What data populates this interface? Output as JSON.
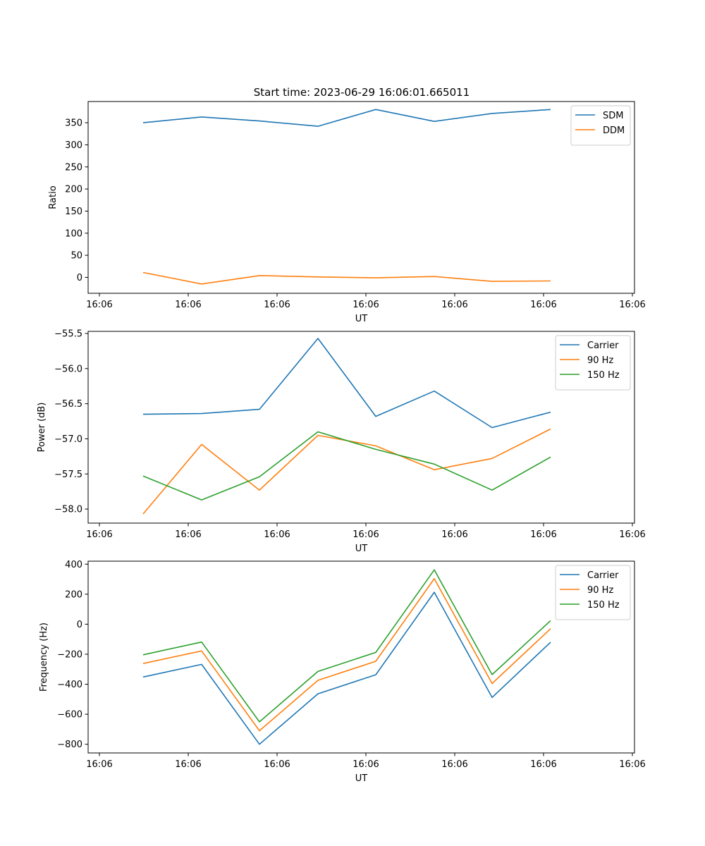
{
  "figure": {
    "title": "Start time: 2023-06-29 16:06:01.665011"
  },
  "chart_data": [
    {
      "type": "line",
      "xlabel": "UT",
      "ylabel": "Ratio",
      "x_tick_labels": [
        "16:06",
        "16:06",
        "16:06",
        "16:06",
        "16:06",
        "16:06",
        "16:06"
      ],
      "y_ticks": [
        0,
        50,
        100,
        150,
        200,
        250,
        300,
        350
      ],
      "ylim": [
        -36,
        398
      ],
      "grid": false,
      "legend_position": "top-right",
      "series": [
        {
          "name": "SDM",
          "color": "#1f77b4",
          "values": [
            350,
            363,
            354,
            342,
            380,
            353,
            371,
            380
          ]
        },
        {
          "name": "DDM",
          "color": "#ff7f0e",
          "values": [
            11,
            -15,
            4,
            1,
            -1,
            2,
            -9,
            -8
          ]
        }
      ]
    },
    {
      "type": "line",
      "xlabel": "UT",
      "ylabel": "Power (dB)",
      "x_tick_labels": [
        "16:06",
        "16:06",
        "16:06",
        "16:06",
        "16:06",
        "16:06",
        "16:06"
      ],
      "y_ticks": [
        -55.5,
        -56.0,
        -56.5,
        -57.0,
        -57.5,
        -58.0
      ],
      "y_tick_labels": [
        "−55.5",
        "−56.0",
        "−56.5",
        "−57.0",
        "−57.5",
        "−58.0"
      ],
      "ylim": [
        -58.2,
        -55.47
      ],
      "grid": false,
      "legend_position": "top-right",
      "series": [
        {
          "name": "Carrier",
          "color": "#1f77b4",
          "values": [
            -56.65,
            -56.64,
            -56.58,
            -55.57,
            -56.68,
            -56.32,
            -56.84,
            -56.62
          ]
        },
        {
          "name": "90 Hz",
          "color": "#ff7f0e",
          "values": [
            -58.07,
            -57.08,
            -57.73,
            -56.95,
            -57.1,
            -57.44,
            -57.28,
            -56.86
          ]
        },
        {
          "name": "150 Hz",
          "color": "#2ca02c",
          "values": [
            -57.53,
            -57.87,
            -57.54,
            -56.9,
            -57.15,
            -57.36,
            -57.73,
            -57.26
          ]
        }
      ]
    },
    {
      "type": "line",
      "xlabel": "UT",
      "ylabel": "Frequency (Hz)",
      "x_tick_labels": [
        "16:06",
        "16:06",
        "16:06",
        "16:06",
        "16:06",
        "16:06",
        "16:06"
      ],
      "y_ticks": [
        400,
        200,
        0,
        -200,
        -400,
        -600,
        -800
      ],
      "y_tick_labels": [
        "400",
        "200",
        "0",
        "−200",
        "−400",
        "−600",
        "−800"
      ],
      "ylim": [
        -858,
        420
      ],
      "grid": false,
      "legend_position": "top-right",
      "series": [
        {
          "name": "Carrier",
          "color": "#1f77b4",
          "values": [
            -352,
            -268,
            -800,
            -464,
            -337,
            213,
            -488,
            -120
          ]
        },
        {
          "name": "90 Hz",
          "color": "#ff7f0e",
          "values": [
            -262,
            -178,
            -710,
            -374,
            -247,
            303,
            -395,
            -30
          ]
        },
        {
          "name": "150 Hz",
          "color": "#2ca02c",
          "values": [
            -204,
            -119,
            -651,
            -315,
            -188,
            362,
            -336,
            24
          ]
        }
      ]
    }
  ]
}
